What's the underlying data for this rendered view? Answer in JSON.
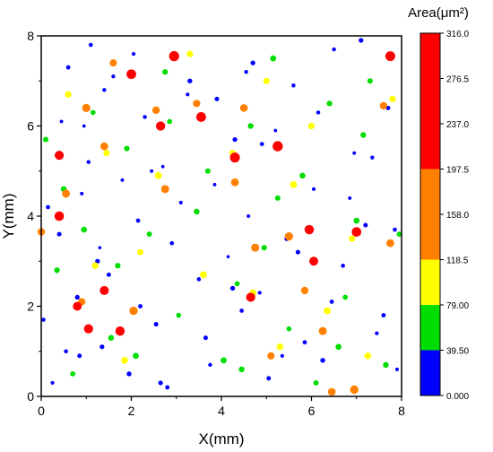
{
  "chart_data": {
    "type": "scatter",
    "xlabel": "X(mm)",
    "ylabel": "Y(mm)",
    "xlim": [
      0,
      8
    ],
    "ylim": [
      0,
      8
    ],
    "x_ticks": [
      "0",
      "2",
      "4",
      "6",
      "8"
    ],
    "y_ticks": [
      "0",
      "2",
      "4",
      "6",
      "8"
    ],
    "colorbar": {
      "title": "Area(μm²)",
      "placement": "right",
      "labels": [
        "316.0",
        "276.5",
        "237.0",
        "197.5",
        "158.0",
        "118.5",
        "79.00",
        "39.50",
        "0.000"
      ],
      "bins": [
        {
          "min": 0.0,
          "max": 39.5,
          "color": "#0000ff"
        },
        {
          "min": 39.5,
          "max": 79.0,
          "color": "#00dd00"
        },
        {
          "min": 79.0,
          "max": 118.5,
          "color": "#ffff00"
        },
        {
          "min": 118.5,
          "max": 197.5,
          "color": "#ff8000"
        },
        {
          "min": 197.5,
          "max": 316.0,
          "color": "#ff0000"
        }
      ]
    },
    "series": [
      {
        "x": [
          0.05,
          0.25,
          0.4,
          0.45,
          0.6,
          0.8,
          0.9,
          0.85,
          1.05,
          1.1,
          1.3,
          1.35,
          1.4,
          1.5,
          1.8,
          1.95,
          2.05,
          2.15,
          2.3,
          2.55,
          2.7,
          2.8,
          3.1,
          3.3,
          3.5,
          3.75,
          3.9,
          4.15,
          4.3,
          4.45,
          4.6,
          4.7,
          4.85,
          5.05,
          5.2,
          5.45,
          5.6,
          5.85,
          6.05,
          6.25,
          6.5,
          6.7,
          6.95,
          7.2,
          7.45,
          7.7,
          7.9,
          0.15,
          0.55,
          0.95,
          1.25,
          1.6,
          2.2,
          2.45,
          2.65,
          2.9,
          3.25,
          3.65,
          3.85,
          4.25,
          4.55,
          4.9,
          5.35,
          5.7,
          6.15,
          6.45,
          6.85,
          7.1,
          7.35,
          7.6,
          7.85
        ],
        "y": [
          1.7,
          0.3,
          3.6,
          6.1,
          7.3,
          2.2,
          4.5,
          0.9,
          5.2,
          7.8,
          3.3,
          1.1,
          6.8,
          2.7,
          4.8,
          0.5,
          7.6,
          3.9,
          6.2,
          1.6,
          5.1,
          0.2,
          4.3,
          7.0,
          2.6,
          0.7,
          6.6,
          3.1,
          5.7,
          1.9,
          4.0,
          7.4,
          2.3,
          0.4,
          5.9,
          3.5,
          6.9,
          1.2,
          4.6,
          0.8,
          7.7,
          2.9,
          5.4,
          3.8,
          1.4,
          6.4,
          0.6,
          4.2,
          1.0,
          6.0,
          3.0,
          7.1,
          2.0,
          5.0,
          0.3,
          3.4,
          6.7,
          1.3,
          4.7,
          2.4,
          7.2,
          5.6,
          0.9,
          3.2,
          6.3,
          2.1,
          4.4,
          7.9,
          5.3,
          1.8,
          3.7
        ],
        "area": [
          20,
          15,
          30,
          10,
          25,
          35,
          12,
          28,
          18,
          22,
          8,
          33,
          16,
          27,
          11,
          38,
          14,
          24,
          19,
          31,
          9,
          26,
          13,
          37,
          21,
          17,
          29,
          7,
          34,
          23,
          12,
          36,
          15,
          28,
          10,
          32,
          19,
          25,
          14,
          39,
          18,
          22,
          11,
          30,
          16,
          27,
          13,
          24,
          20,
          9,
          35,
          17,
          26,
          12,
          33,
          21,
          15,
          29,
          10,
          38,
          18,
          23,
          14,
          31,
          19,
          25,
          11,
          36,
          16,
          28,
          22
        ]
      },
      {
        "x": [
          0.1,
          0.35,
          0.7,
          0.95,
          1.15,
          1.55,
          1.9,
          2.1,
          2.4,
          2.75,
          3.05,
          3.45,
          3.7,
          4.05,
          4.35,
          4.65,
          4.95,
          5.15,
          5.5,
          5.8,
          6.1,
          6.4,
          6.75,
          7.0,
          7.3,
          7.65,
          7.95,
          0.5,
          1.7,
          2.85,
          4.45,
          5.25,
          6.6,
          7.15
        ],
        "y": [
          5.7,
          2.8,
          0.5,
          3.7,
          6.3,
          1.3,
          5.5,
          0.9,
          3.6,
          7.2,
          1.8,
          4.1,
          5.0,
          0.8,
          2.5,
          6.0,
          3.3,
          7.5,
          1.5,
          4.9,
          0.3,
          6.5,
          2.2,
          3.9,
          7.0,
          0.7,
          3.6,
          4.6,
          2.9,
          6.1,
          0.6,
          4.4,
          1.1,
          5.8
        ],
        "area": [
          55,
          62,
          48,
          71,
          44,
          66,
          58,
          75,
          50,
          60,
          42,
          68,
          53,
          77,
          47,
          64,
          57,
          73,
          41,
          69,
          52,
          61,
          46,
          74,
          56,
          65,
          49,
          70,
          59,
          45,
          67,
          54,
          72,
          63
        ]
      },
      {
        "x": [
          0.6,
          1.2,
          1.45,
          1.85,
          2.2,
          2.6,
          3.3,
          3.6,
          4.25,
          4.7,
          5.0,
          5.3,
          5.6,
          6.0,
          6.35,
          6.9,
          7.25,
          7.8
        ],
        "y": [
          6.7,
          2.9,
          5.4,
          0.8,
          3.2,
          4.9,
          7.6,
          2.7,
          5.4,
          2.3,
          7.0,
          1.1,
          4.7,
          6.0,
          1.9,
          3.5,
          0.9,
          6.6
        ],
        "area": [
          95,
          102,
          88,
          110,
          85,
          115,
          92,
          105,
          98,
          112,
          87,
          100,
          108,
          94,
          117,
          90,
          103,
          96
        ]
      },
      {
        "x": [
          0.0,
          0.55,
          0.9,
          1.0,
          1.4,
          1.6,
          2.05,
          2.55,
          2.75,
          3.45,
          4.3,
          4.5,
          4.75,
          5.1,
          5.5,
          5.85,
          6.25,
          6.45,
          6.95,
          7.6,
          7.75
        ],
        "y": [
          3.65,
          4.5,
          2.1,
          6.4,
          5.55,
          7.4,
          1.9,
          6.35,
          4.6,
          6.5,
          4.75,
          6.4,
          3.3,
          0.9,
          3.55,
          2.35,
          1.45,
          0.1,
          0.15,
          6.45,
          3.4
        ],
        "area": [
          140,
          165,
          130,
          180,
          155,
          125,
          190,
          145,
          170,
          135,
          160,
          150,
          175,
          128,
          185,
          138,
          168,
          152,
          195,
          142,
          158
        ]
      },
      {
        "x": [
          0.4,
          0.4,
          0.8,
          1.05,
          1.4,
          1.75,
          2.0,
          2.65,
          2.95,
          3.55,
          4.3,
          4.65,
          5.25,
          5.95,
          6.05,
          7.0,
          7.75
        ],
        "y": [
          5.35,
          4.0,
          2.0,
          1.5,
          2.35,
          1.45,
          7.15,
          6.0,
          7.55,
          6.2,
          5.3,
          2.2,
          5.55,
          3.7,
          3.0,
          3.65,
          7.55
        ],
        "area": [
          230,
          260,
          215,
          240,
          225,
          250,
          270,
          245,
          300,
          280,
          290,
          235,
          310,
          255,
          220,
          265,
          285
        ]
      }
    ]
  }
}
